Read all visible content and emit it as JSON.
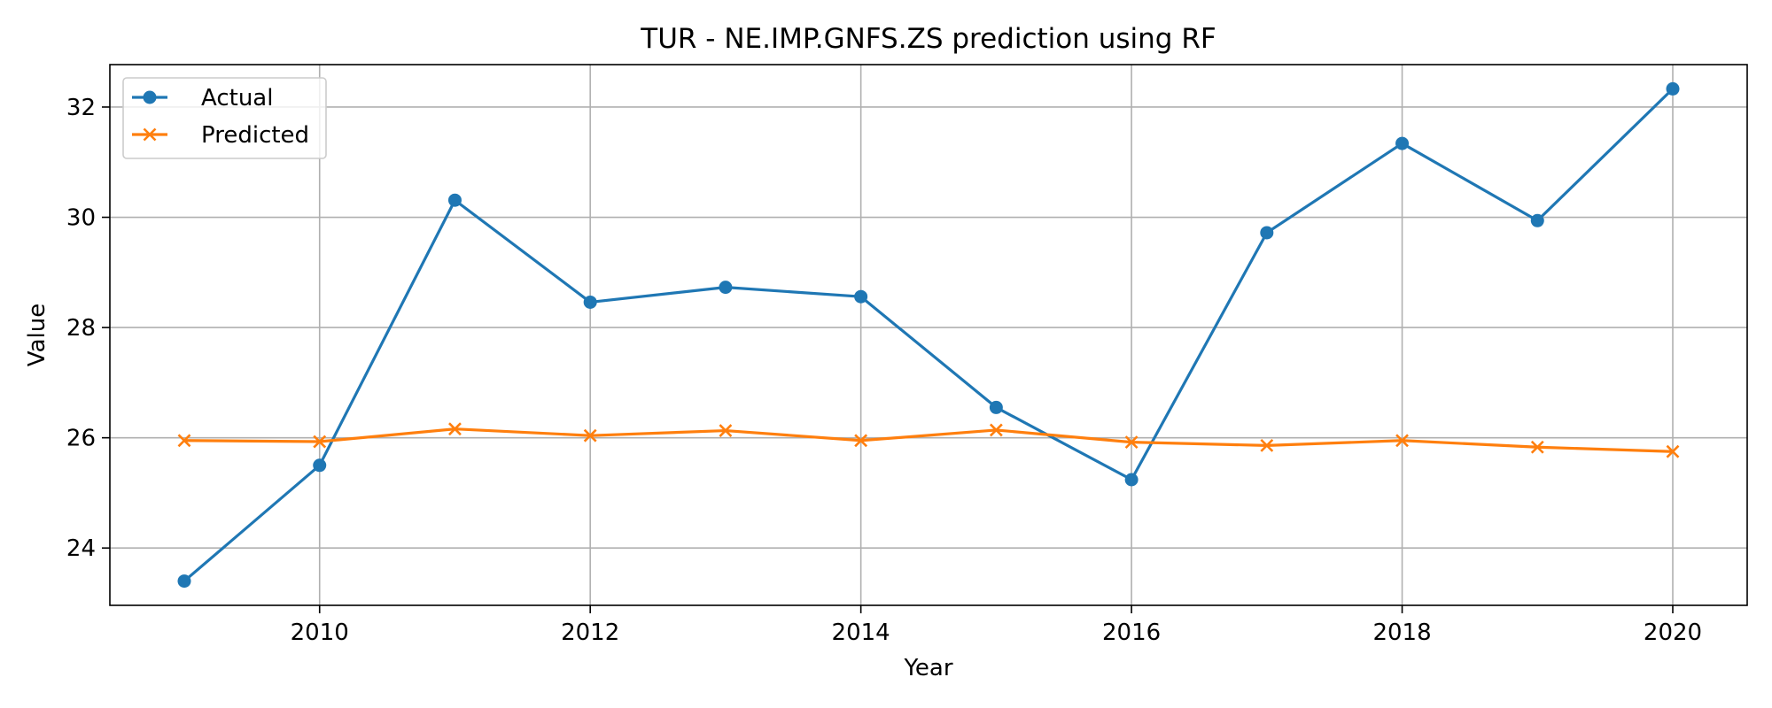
{
  "chart_data": {
    "type": "line",
    "title": "TUR - NE.IMP.GNFS.ZS prediction using RF",
    "xlabel": "Year",
    "ylabel": "Value",
    "x": [
      2009,
      2010,
      2011,
      2012,
      2013,
      2014,
      2015,
      2016,
      2017,
      2018,
      2019,
      2020
    ],
    "xlim": [
      2008.45,
      2020.55
    ],
    "ylim": [
      22.96,
      32.77
    ],
    "xticks": [
      2010,
      2012,
      2014,
      2016,
      2018,
      2020
    ],
    "yticks": [
      24,
      26,
      28,
      30,
      32
    ],
    "grid": true,
    "legend_position": "upper-left",
    "series": [
      {
        "name": "Actual",
        "color": "#1f77b4",
        "marker": "circle",
        "values": [
          23.4,
          25.5,
          30.31,
          28.46,
          28.73,
          28.56,
          26.55,
          25.24,
          29.72,
          31.34,
          29.94,
          32.33
        ]
      },
      {
        "name": "Predicted",
        "color": "#ff7f0e",
        "marker": "x",
        "values": [
          25.95,
          25.93,
          26.16,
          26.04,
          26.13,
          25.95,
          26.14,
          25.92,
          25.86,
          25.95,
          25.83,
          25.75
        ]
      }
    ]
  }
}
